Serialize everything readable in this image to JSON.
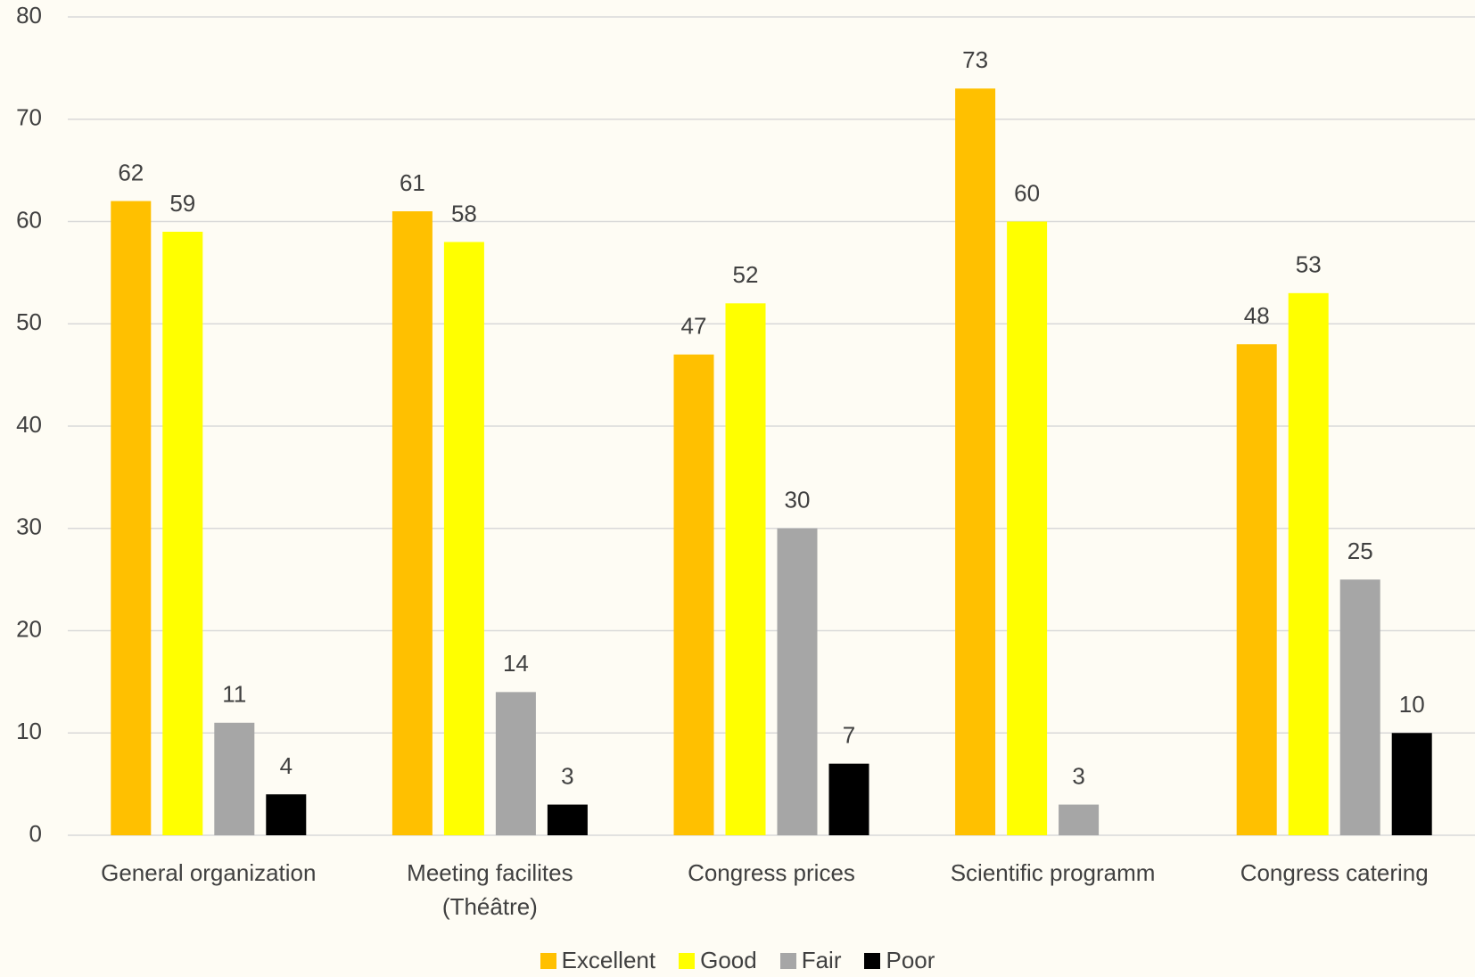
{
  "chart_data": {
    "type": "bar",
    "categories": [
      "General organization",
      "Meeting facilites (Théâtre)",
      "Congress prices",
      "Scientific programm",
      "Congress catering"
    ],
    "series": [
      {
        "name": "Excellent",
        "color": "#ffc000",
        "values": [
          62,
          61,
          47,
          73,
          48
        ]
      },
      {
        "name": "Good",
        "color": "#ffff00",
        "values": [
          59,
          58,
          52,
          60,
          53
        ]
      },
      {
        "name": "Fair",
        "color": "#a6a6a6",
        "values": [
          11,
          14,
          30,
          3,
          25
        ]
      },
      {
        "name": "Poor",
        "color": "#000000",
        "values": [
          4,
          3,
          7,
          null,
          10
        ]
      }
    ],
    "ylim": [
      0,
      80
    ],
    "yticks": [
      0,
      10,
      20,
      30,
      40,
      50,
      60,
      70,
      80
    ],
    "grid": true,
    "legend": "bottom"
  }
}
